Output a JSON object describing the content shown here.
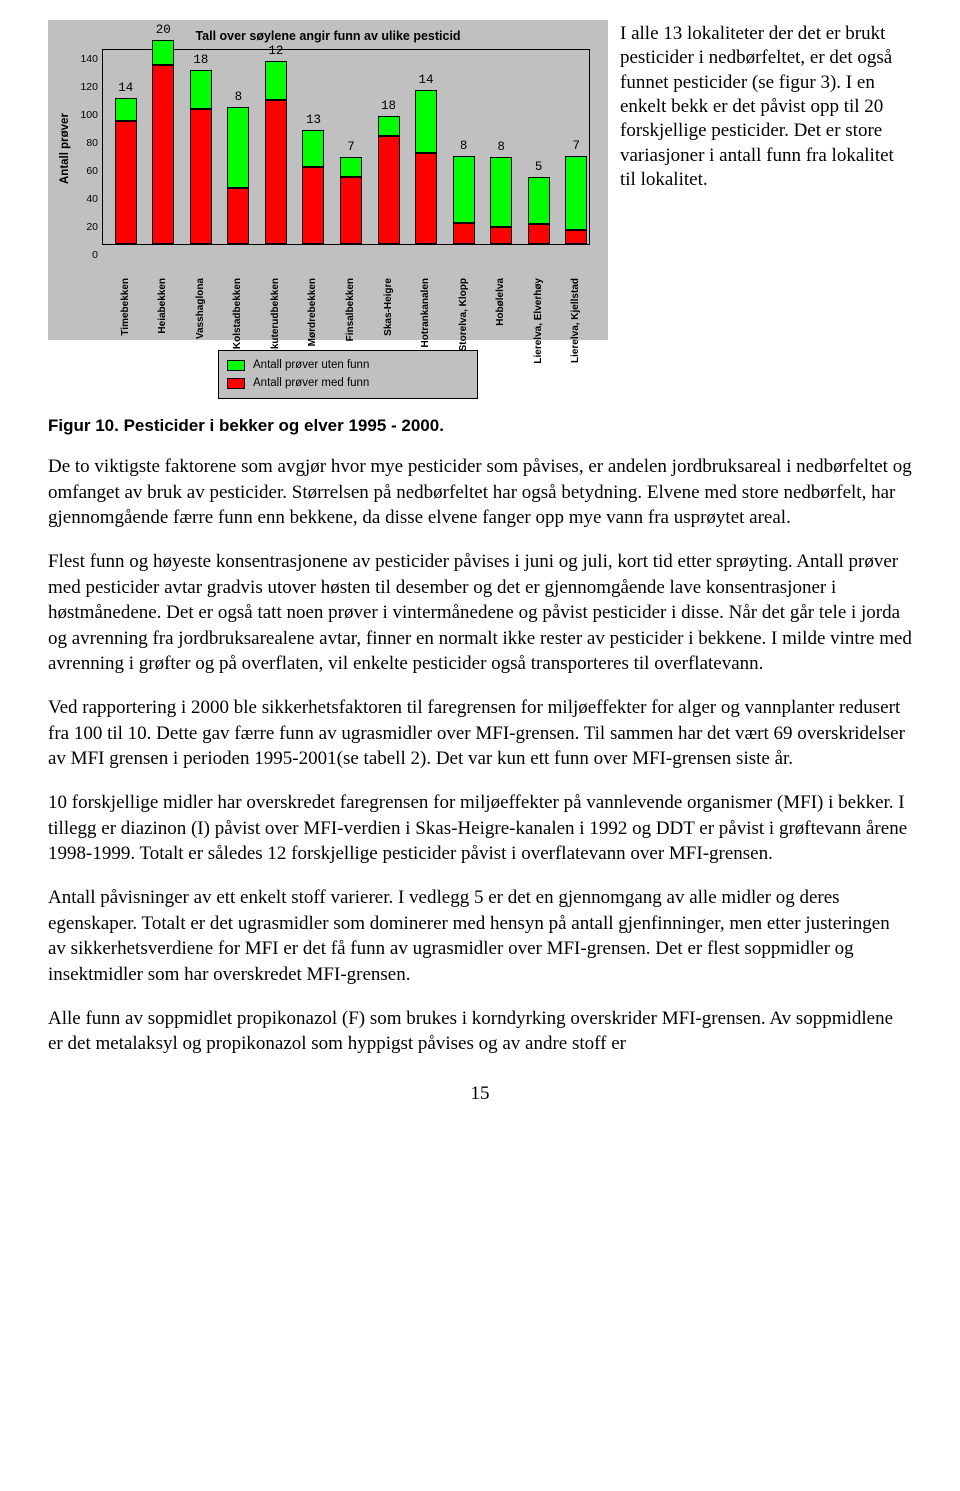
{
  "chart": {
    "title": "Tall over søylene angir funn av ulike pesticid",
    "ylabel": "Antall prøver",
    "ymax": 140,
    "yticks": [
      0,
      20,
      40,
      60,
      80,
      100,
      120,
      140
    ],
    "ytick_step": 20,
    "background_color": "#c0c0c0",
    "series_colors": {
      "funn": "#ff0000",
      "uten": "#00ff00"
    },
    "categories": [
      {
        "name": "Timebekken",
        "funn": 88,
        "uten": 16,
        "top_label": "14"
      },
      {
        "name": "Heiabekken",
        "funn": 128,
        "uten": 18,
        "top_label": "20"
      },
      {
        "name": "Vasshaglona",
        "funn": 96,
        "uten": 28,
        "top_label": "18"
      },
      {
        "name": "Kolstadbekken",
        "funn": 40,
        "uten": 58,
        "top_label": "8"
      },
      {
        "name": "Skuterudbekken",
        "funn": 103,
        "uten": 28,
        "top_label": "12"
      },
      {
        "name": "Mørdrebekken",
        "funn": 55,
        "uten": 26,
        "top_label": "13"
      },
      {
        "name": "Finsalbekken",
        "funn": 48,
        "uten": 14,
        "top_label": "7"
      },
      {
        "name": "Skas-Heigre",
        "funn": 77,
        "uten": 14,
        "top_label": "18"
      },
      {
        "name": "Hotrankanalen",
        "funn": 65,
        "uten": 45,
        "top_label": "14"
      },
      {
        "name": "Storelva, Klopp",
        "funn": 15,
        "uten": 48,
        "top_label": "8"
      },
      {
        "name": "Hobølelva",
        "funn": 12,
        "uten": 50,
        "top_label": "8"
      },
      {
        "name": "Lierelva, Elverhøy",
        "funn": 14,
        "uten": 34,
        "top_label": "5"
      },
      {
        "name": "Lierelva, Kjellstad",
        "funn": 10,
        "uten": 53,
        "top_label": "7"
      }
    ],
    "legend": {
      "uten": "Antall prøver uten funn",
      "funn": "Antall prøver med funn"
    }
  },
  "side_text": "I alle 13 lokaliteter der det er brukt pesticider i nedbørfeltet, er det også funnet pesticider (se figur 3). I en enkelt bekk er det påvist opp til 20 forskjellige pesticider. Det er store variasjoner i antall funn fra lokalitet til lokalitet.",
  "figure_caption": "Figur 10. Pesticider i bekker og elver 1995 - 2000.",
  "paragraphs": [
    "De to viktigste faktorene som avgjør hvor mye pesticider som påvises, er andelen jordbruksareal i nedbørfeltet og omfanget av bruk av pesticider. Størrelsen på nedbørfeltet har også betydning. Elvene med store nedbørfelt, har gjennomgående færre funn enn bekkene, da disse elvene fanger opp mye vann fra usprøytet areal.",
    "Flest funn og høyeste konsentrasjonene av pesticider påvises i juni og juli, kort tid etter sprøyting. Antall prøver med pesticider avtar gradvis utover høsten til desember og det er gjennomgående lave konsentrasjoner i høstmånedene. Det er også tatt noen prøver i vintermånedene og påvist pesticider i disse. Når det går tele i jorda og avrenning fra jordbruksarealene avtar, finner en normalt ikke rester av pesticider i bekkene. I milde vintre med avrenning i grøfter og på overflaten, vil enkelte pesticider også transporteres til overflatevann.",
    "Ved rapportering i 2000 ble sikkerhetsfaktoren til faregrensen for miljøeffekter for alger og vannplanter redusert fra 100 til 10. Dette gav færre funn av ugrasmidler over MFI-grensen. Til sammen har det vært 69 overskridelser av MFI grensen i perioden 1995-2001(se tabell 2). Det var kun ett funn over MFI-grensen siste år.",
    "10 forskjellige midler har overskredet faregrensen for miljøeffekter på vannlevende organismer (MFI) i bekker. I tillegg er diazinon (I) påvist over MFI-verdien i Skas-Heigre-kanalen i 1992 og DDT er påvist i grøftevann årene 1998-1999. Totalt er således 12 forskjellige pesticider påvist i overflatevann over MFI-grensen.",
    "Antall påvisninger av ett enkelt stoff varierer. I vedlegg 5 er det en gjennomgang av alle midler og deres egenskaper. Totalt er det ugrasmidler som dominerer med hensyn på antall gjenfinninger, men etter justeringen av sikkerhetsverdiene for MFI er det få funn av ugrasmidler over MFI-grensen. Det er flest soppmidler og insektmidler som har overskredet MFI-grensen.",
    "Alle funn av soppmidlet propikonazol (F) som brukes i korndyrking overskrider MFI-grensen. Av soppmidlene er det metalaksyl og propikonazol som hyppigst påvises og av andre stoff er"
  ],
  "page_number": "15"
}
